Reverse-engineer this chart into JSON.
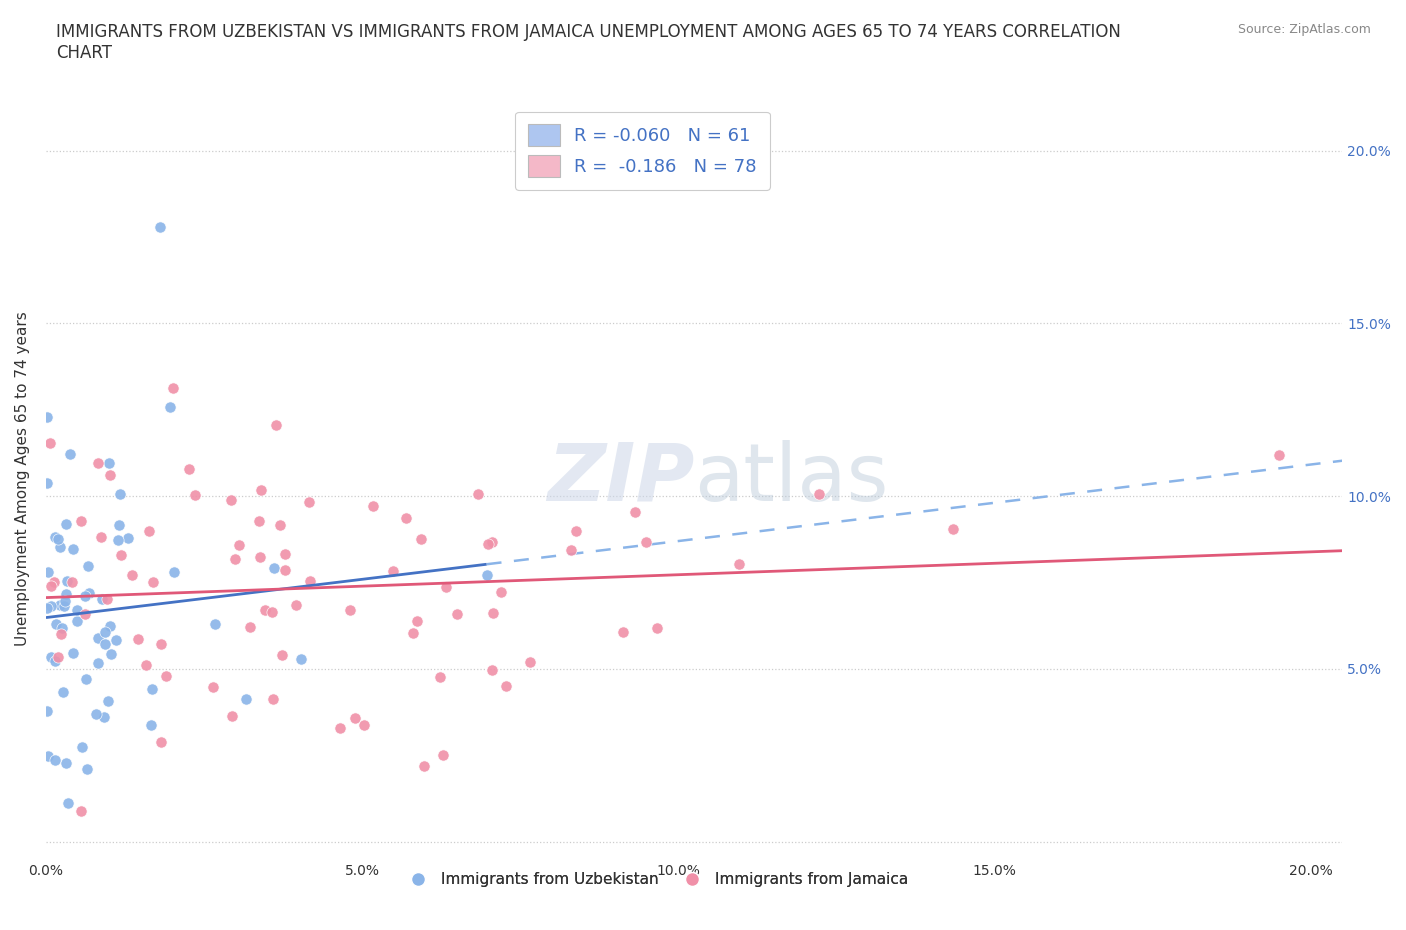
{
  "title": "IMMIGRANTS FROM UZBEKISTAN VS IMMIGRANTS FROM JAMAICA UNEMPLOYMENT AMONG AGES 65 TO 74 YEARS CORRELATION\nCHART",
  "source_text": "Source: ZipAtlas.com",
  "ylabel": "Unemployment Among Ages 65 to 74 years",
  "xlim": [
    0.0,
    0.205
  ],
  "ylim": [
    -0.005,
    0.215
  ],
  "legend_entries": [
    {
      "label": "R = -0.060   N = 61",
      "color": "#aec6f0"
    },
    {
      "label": "R =  -0.186   N = 78",
      "color": "#f4b8c8"
    }
  ],
  "legend_bottom_labels": [
    "Immigrants from Uzbekistan",
    "Immigrants from Jamaica"
  ],
  "R_uzbekistan": -0.06,
  "N_uzbekistan": 61,
  "R_jamaica": -0.186,
  "N_jamaica": 78,
  "scatter_uzbekistan_color": "#8ab4e8",
  "scatter_jamaica_color": "#f090a8",
  "trend_uzbekistan_color": "#4472c4",
  "trend_jamaica_color": "#e05878",
  "grid_color": "#cccccc",
  "background_color": "#ffffff",
  "watermark_color": "#ccd6e8",
  "title_fontsize": 12,
  "axis_label_fontsize": 11,
  "tick_fontsize": 10,
  "right_ytick_color": "#4472c4"
}
